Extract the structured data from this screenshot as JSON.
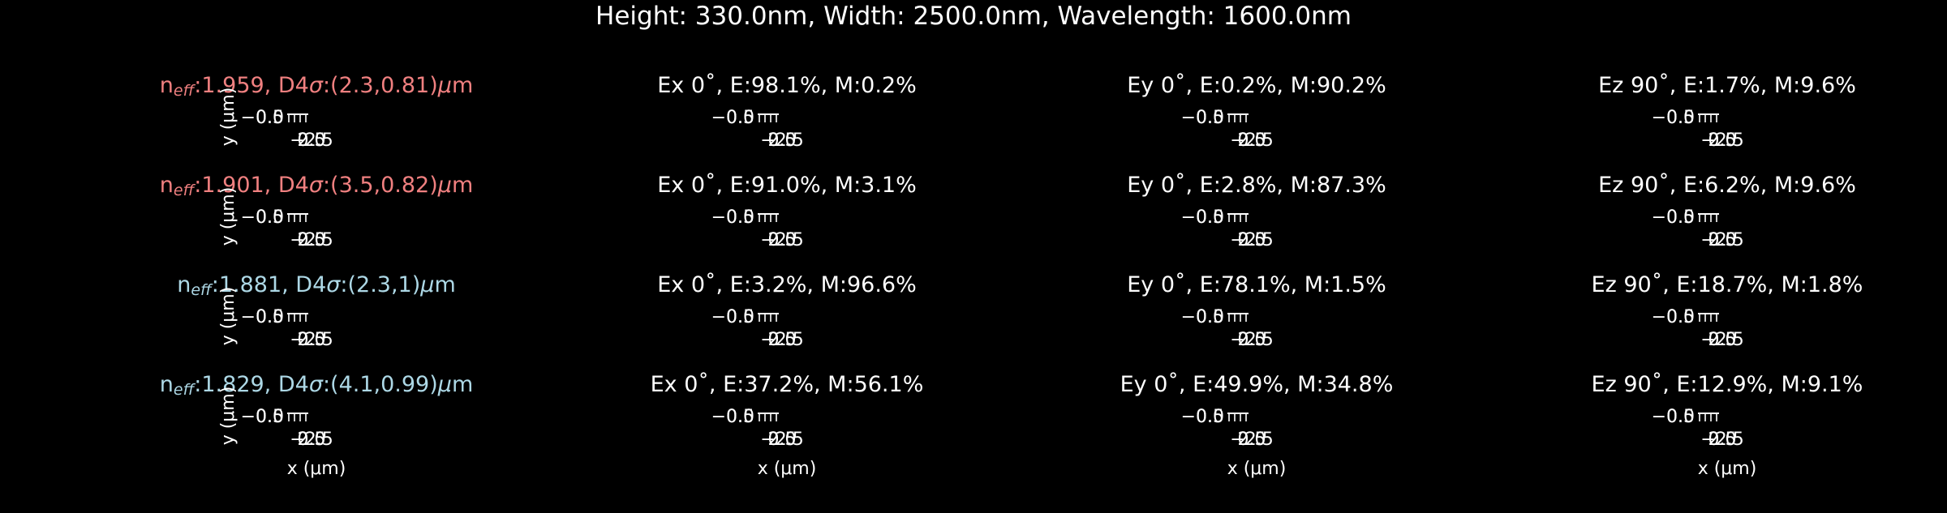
{
  "figure": {
    "title": "Height: 330.0nm, Width: 2500.0nm, Wavelength: 1600.0nm",
    "background": "#000000",
    "text_color": "#ffffff",
    "colors": {
      "te_like": "#f08080",
      "tm_like": "#add8e6"
    }
  },
  "chart_data": {
    "type": "heatmap",
    "title": "Height: 330.0nm, Width: 2500.0nm, Wavelength: 1600.0nm",
    "grid": {
      "rows": 4,
      "cols": 4
    },
    "axis_labels": {
      "x": "x (μm)",
      "y": "y (μm)"
    },
    "axis_labels_html": {
      "x": "x (<i>μ</i>m)",
      "y": "y (<i>μ</i>m)"
    },
    "overlapping_tick_labels": {
      "y": [
        "−0.5",
        "0.0"
      ],
      "x": [
        "−2.5",
        "0.0",
        "2.5"
      ]
    },
    "modes": [
      {
        "label": "neff:1.959, D4σ:(2.3,0.81)μm",
        "label_parts": {
          "prefix": "n",
          "sub": "eff",
          "rest": ":1.959, D4",
          "sigma": "σ",
          "after_sigma": ":(2.3,0.81)",
          "unit": "μm"
        },
        "n_eff": 1.959,
        "d4sigma_um": [
          2.3,
          0.81
        ],
        "color": "#f08080",
        "panels": [
          {
            "component": "Ex",
            "angle": "0˚",
            "E_pct": 98.1,
            "M_pct": 0.2,
            "title": "Ex 0˚, E:98.1%, M:0.2%"
          },
          {
            "component": "Ey",
            "angle": "0˚",
            "E_pct": 0.2,
            "M_pct": 90.2,
            "title": "Ey 0˚, E:0.2%, M:90.2%"
          },
          {
            "component": "Ez",
            "angle": "90˚",
            "E_pct": 1.7,
            "M_pct": 9.6,
            "title": "Ez 90˚, E:1.7%, M:9.6%"
          }
        ]
      },
      {
        "label": "neff:1.901, D4σ:(3.5,0.82)μm",
        "label_parts": {
          "prefix": "n",
          "sub": "eff",
          "rest": ":1.901, D4",
          "sigma": "σ",
          "after_sigma": ":(3.5,0.82)",
          "unit": "μm"
        },
        "n_eff": 1.901,
        "d4sigma_um": [
          3.5,
          0.82
        ],
        "color": "#f08080",
        "panels": [
          {
            "component": "Ex",
            "angle": "0˚",
            "E_pct": 91.0,
            "M_pct": 3.1,
            "title": "Ex 0˚, E:91.0%, M:3.1%"
          },
          {
            "component": "Ey",
            "angle": "0˚",
            "E_pct": 2.8,
            "M_pct": 87.3,
            "title": "Ey 0˚, E:2.8%, M:87.3%"
          },
          {
            "component": "Ez",
            "angle": "90˚",
            "E_pct": 6.2,
            "M_pct": 9.6,
            "title": "Ez 90˚, E:6.2%, M:9.6%"
          }
        ]
      },
      {
        "label": "neff:1.881, D4σ:(2.3,1)μm",
        "label_parts": {
          "prefix": "n",
          "sub": "eff",
          "rest": ":1.881, D4",
          "sigma": "σ",
          "after_sigma": ":(2.3,1)",
          "unit": "μm"
        },
        "n_eff": 1.881,
        "d4sigma_um": [
          2.3,
          1
        ],
        "color": "#add8e6",
        "panels": [
          {
            "component": "Ex",
            "angle": "0˚",
            "E_pct": 3.2,
            "M_pct": 96.6,
            "title": "Ex 0˚, E:3.2%, M:96.6%"
          },
          {
            "component": "Ey",
            "angle": "0˚",
            "E_pct": 78.1,
            "M_pct": 1.5,
            "title": "Ey 0˚, E:78.1%, M:1.5%"
          },
          {
            "component": "Ez",
            "angle": "90˚",
            "E_pct": 18.7,
            "M_pct": 1.8,
            "title": "Ez 90˚, E:18.7%, M:1.8%"
          }
        ]
      },
      {
        "label": "neff:1.829, D4σ:(4.1,0.99)μm",
        "label_parts": {
          "prefix": "n",
          "sub": "eff",
          "rest": ":1.829, D4",
          "sigma": "σ",
          "after_sigma": ":(4.1,0.99)",
          "unit": "μm"
        },
        "n_eff": 1.829,
        "d4sigma_um": [
          4.1,
          0.99
        ],
        "color": "#add8e6",
        "panels": [
          {
            "component": "Ex",
            "angle": "0˚",
            "E_pct": 37.2,
            "M_pct": 56.1,
            "title": "Ex 0˚, E:37.2%, M:56.1%"
          },
          {
            "component": "Ey",
            "angle": "0˚",
            "E_pct": 49.9,
            "M_pct": 34.8,
            "title": "Ey 0˚, E:49.9%, M:34.8%"
          },
          {
            "component": "Ez",
            "angle": "90˚",
            "E_pct": 12.9,
            "M_pct": 9.1,
            "title": "Ez 90˚, E:12.9%, M:9.1%"
          }
        ]
      }
    ]
  }
}
